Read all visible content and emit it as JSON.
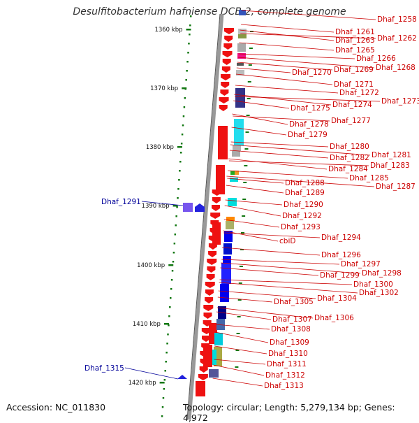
{
  "title": "Desulfitobacterium hafniense DCB-2, complete genome",
  "footer": {
    "accession": "Accession: NC_011830",
    "topology": "Topology: circular; Length: 5,279,134 bp; Genes: 4,972"
  },
  "colors": {
    "forward_gene": "#ee1111",
    "label_red": "#cc0000",
    "label_blue": "#000099",
    "reverse_gene": "#2222dd",
    "ruler_tick": "#117711",
    "backbone": "#888888"
  },
  "ruler": [
    {
      "label": "1360 kbp",
      "kbp": 1360
    },
    {
      "label": "1370 kbp",
      "kbp": 1370
    },
    {
      "label": "1380 kbp",
      "kbp": 1380
    },
    {
      "label": "1390 kbp",
      "kbp": 1390
    },
    {
      "label": "1400 kbp",
      "kbp": 1400
    },
    {
      "label": "1410 kbp",
      "kbp": 1410
    },
    {
      "label": "1420 kbp",
      "kbp": 1420
    }
  ],
  "right_genes": [
    "Dhaf_1258",
    "Dhaf_1261",
    "Dhaf_1262",
    "Dhaf_1263",
    "Dhaf_1265",
    "Dhaf_1266",
    "Dhaf_1268",
    "Dhaf_1269",
    "Dhaf_1270",
    "Dhaf_1271",
    "Dhaf_1272",
    "Dhaf_1273",
    "Dhaf_1274",
    "Dhaf_1275",
    "Dhaf_1277",
    "Dhaf_1278",
    "Dhaf_1279",
    "Dhaf_1280",
    "Dhaf_1281",
    "Dhaf_1282",
    "Dhaf_1283",
    "Dhaf_1284",
    "Dhaf_1285",
    "Dhaf_1288",
    "Dhaf_1287",
    "Dhaf_1289",
    "Dhaf_1290",
    "Dhaf_1292",
    "Dhaf_1293",
    "Dhaf_1294",
    "cbiD",
    "Dhaf_1296",
    "Dhaf_1297",
    "Dhaf_1298",
    "Dhaf_1299",
    "Dhaf_1300",
    "Dhaf_1302",
    "Dhaf_1304",
    "Dhaf_1305",
    "Dhaf_1306",
    "Dhaf_1307",
    "Dhaf_1308",
    "Dhaf_1309",
    "Dhaf_1310",
    "Dhaf_1311",
    "Dhaf_1312",
    "Dhaf_1313"
  ],
  "left_genes": [
    "Dhaf_1291",
    "Dhaf_1315"
  ],
  "domain_colors": [
    "#c0c0c0",
    "#889944",
    "#aaaaaa",
    "#ee1188",
    "#555555",
    "#bbbbbb",
    "#333388",
    "#22ddee",
    "#aaddee",
    "#b0b0b0",
    "#22aa22",
    "#ee9922",
    "#00dddd",
    "#ff8800",
    "#aab066",
    "#0000ee",
    "#0011cc",
    "#2222ff",
    "#000088",
    "#4466aa",
    "#00ccdd",
    "#aaaa44",
    "#555599",
    "#ddeeee"
  ]
}
